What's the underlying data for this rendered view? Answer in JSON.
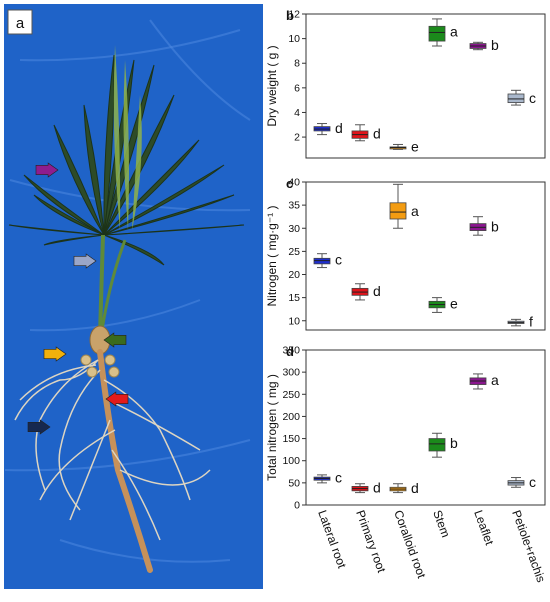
{
  "photo": {
    "panel_label": "a",
    "background_color": "#1f63c8",
    "arrows": [
      {
        "name": "leaflet",
        "color": "#8e1d8e"
      },
      {
        "name": "petiole-rachis",
        "color": "#9aa6c8"
      },
      {
        "name": "stem",
        "color": "#3a6b1e"
      },
      {
        "name": "coralloid-root",
        "color": "#f1b10c"
      },
      {
        "name": "primary-root",
        "color": "#e31b1b"
      },
      {
        "name": "lateral-root",
        "color": "#16284f"
      }
    ]
  },
  "categories": [
    "Lateral root",
    "Primary root",
    "Coralloid root",
    "Stem",
    "Leaflet",
    "Petiole+rachis"
  ],
  "colors": [
    "#1f2fd0",
    "#e0141b",
    "#f39c12",
    "#1b8a1b",
    "#8b168f",
    "#aab8cc"
  ],
  "chart_data": [
    {
      "type": "box",
      "panel_label": "b",
      "ylabel": "Dry weight ( g )",
      "yticks": [
        2,
        4,
        6,
        8,
        10,
        12
      ],
      "ylim": [
        0.3,
        12
      ],
      "boxes": [
        {
          "category": "Lateral root",
          "min": 2.2,
          "q1": 2.5,
          "median": 2.65,
          "q3": 2.85,
          "max": 3.1,
          "letter": "d"
        },
        {
          "category": "Primary root",
          "min": 1.7,
          "q1": 1.9,
          "median": 2.2,
          "q3": 2.5,
          "max": 3.0,
          "letter": "d"
        },
        {
          "category": "Coralloid root",
          "min": 1.0,
          "q1": 1.1,
          "median": 1.15,
          "q3": 1.2,
          "max": 1.4,
          "letter": "e"
        },
        {
          "category": "Stem",
          "min": 9.4,
          "q1": 9.8,
          "median": 10.5,
          "q3": 11.0,
          "max": 11.6,
          "letter": "a"
        },
        {
          "category": "Leaflet",
          "min": 9.1,
          "q1": 9.2,
          "median": 9.4,
          "q3": 9.6,
          "max": 9.7,
          "letter": "b"
        },
        {
          "category": "Petiole+rachis",
          "min": 4.6,
          "q1": 4.8,
          "median": 5.1,
          "q3": 5.5,
          "max": 5.8,
          "letter": "c"
        }
      ]
    },
    {
      "type": "box",
      "panel_label": "c",
      "ylabel": "Nitrogen ( mg·g⁻¹ )",
      "yticks": [
        10,
        15,
        20,
        25,
        30,
        35,
        40
      ],
      "ylim": [
        8,
        40
      ],
      "boxes": [
        {
          "category": "Lateral root",
          "min": 21.5,
          "q1": 22.3,
          "median": 23.0,
          "q3": 23.5,
          "max": 24.5,
          "letter": "c"
        },
        {
          "category": "Primary root",
          "min": 14.5,
          "q1": 15.5,
          "median": 16.2,
          "q3": 17.0,
          "max": 18.0,
          "letter": "d"
        },
        {
          "category": "Coralloid root",
          "min": 30.0,
          "q1": 32.0,
          "median": 33.5,
          "q3": 35.5,
          "max": 39.5,
          "letter": "a"
        },
        {
          "category": "Stem",
          "min": 11.8,
          "q1": 12.8,
          "median": 13.5,
          "q3": 14.2,
          "max": 15.0,
          "letter": "e"
        },
        {
          "category": "Leaflet",
          "min": 28.5,
          "q1": 29.5,
          "median": 30.2,
          "q3": 31.0,
          "max": 32.5,
          "letter": "b"
        },
        {
          "category": "Petiole+rachis",
          "min": 8.9,
          "q1": 9.4,
          "median": 9.6,
          "q3": 9.9,
          "max": 10.3,
          "letter": "f"
        }
      ]
    },
    {
      "type": "box",
      "panel_label": "d",
      "ylabel": "Total nitrogen ( mg )",
      "yticks": [
        0,
        50,
        100,
        150,
        200,
        250,
        300,
        350
      ],
      "ylim": [
        0,
        350
      ],
      "boxes": [
        {
          "category": "Lateral root",
          "min": 50,
          "q1": 56,
          "median": 60,
          "q3": 63,
          "max": 68,
          "letter": "c"
        },
        {
          "category": "Primary root",
          "min": 28,
          "q1": 32,
          "median": 37,
          "q3": 42,
          "max": 48,
          "letter": "d"
        },
        {
          "category": "Coralloid root",
          "min": 28,
          "q1": 32,
          "median": 36,
          "q3": 40,
          "max": 48,
          "letter": "d"
        },
        {
          "category": "Stem",
          "min": 108,
          "q1": 122,
          "median": 138,
          "q3": 150,
          "max": 162,
          "letter": "b"
        },
        {
          "category": "Leaflet",
          "min": 262,
          "q1": 272,
          "median": 280,
          "q3": 287,
          "max": 296,
          "letter": "a"
        },
        {
          "category": "Petiole+rachis",
          "min": 40,
          "q1": 45,
          "median": 50,
          "q3": 55,
          "max": 62,
          "letter": "c"
        }
      ]
    }
  ]
}
